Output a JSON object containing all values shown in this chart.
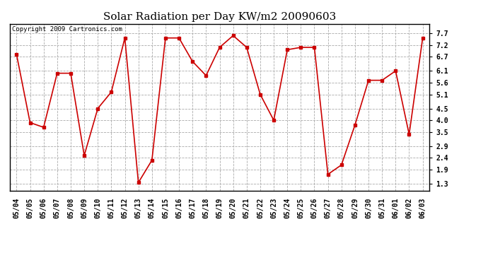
{
  "title": "Solar Radiation per Day KW/m2 20090603",
  "copyright": "Copyright 2009 Cartronics.com",
  "dates": [
    "05/04",
    "05/05",
    "05/06",
    "05/07",
    "05/08",
    "05/09",
    "05/10",
    "05/11",
    "05/12",
    "05/13",
    "05/14",
    "05/15",
    "05/16",
    "05/17",
    "05/18",
    "05/19",
    "05/20",
    "05/21",
    "05/22",
    "05/23",
    "05/24",
    "05/25",
    "05/26",
    "05/27",
    "05/28",
    "05/29",
    "05/30",
    "05/31",
    "06/01",
    "06/02",
    "06/03"
  ],
  "values": [
    6.8,
    3.9,
    3.7,
    6.0,
    6.0,
    2.5,
    4.5,
    5.2,
    7.5,
    1.35,
    2.3,
    7.5,
    7.5,
    6.5,
    5.9,
    7.1,
    7.6,
    7.1,
    5.1,
    4.0,
    7.0,
    7.1,
    7.1,
    1.7,
    2.1,
    3.8,
    5.7,
    5.7,
    6.1,
    3.4,
    7.5
  ],
  "line_color": "#cc0000",
  "marker": "s",
  "marker_size": 2.5,
  "bg_color": "#ffffff",
  "grid_color": "#aaaaaa",
  "yticks": [
    1.3,
    1.9,
    2.4,
    2.9,
    3.5,
    4.0,
    4.5,
    5.1,
    5.6,
    6.1,
    6.7,
    7.2,
    7.7
  ],
  "ylim": [
    1.0,
    8.1
  ],
  "title_fontsize": 11,
  "copyright_fontsize": 6.5,
  "tick_fontsize": 7,
  "figwidth": 6.9,
  "figheight": 3.75
}
